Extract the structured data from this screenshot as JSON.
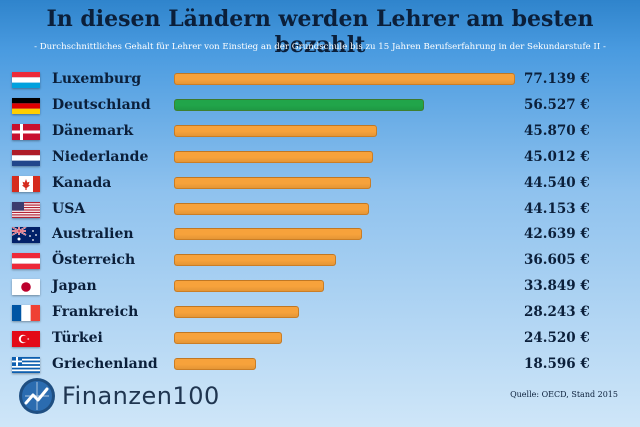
{
  "chart_data": {
    "type": "bar",
    "orientation": "horizontal",
    "title": "In diesen Ländern werden Lehrer am besten bezahlt",
    "subtitle": "- Durchschnittliches Gehalt für Lehrer von Einstieg an der Grundschule bis zu 15 Jahren Berufserfahrung in der Sekundarstufe II -",
    "categories": [
      "Luxemburg",
      "Deutschland",
      "Dänemark",
      "Niederlande",
      "Kanada",
      "USA",
      "Australien",
      "Österreich",
      "Japan",
      "Frankreich",
      "Türkei",
      "Griechenland"
    ],
    "values": [
      77139,
      56527,
      45870,
      45012,
      44540,
      44153,
      42639,
      36605,
      33849,
      28243,
      24520,
      18596
    ],
    "value_labels": [
      "77.139 €",
      "56.527 €",
      "45.870 €",
      "45.012 €",
      "44.540 €",
      "44.153 €",
      "42.639 €",
      "36.605 €",
      "33.849 €",
      "28.243 €",
      "24.520 €",
      "18.596 €"
    ],
    "flags": [
      "flag-luxembourg-icon",
      "flag-germany-icon",
      "flag-denmark-icon",
      "flag-netherlands-icon",
      "flag-canada-icon",
      "flag-usa-icon",
      "flag-australia-icon",
      "flag-austria-icon",
      "flag-japan-icon",
      "flag-france-icon",
      "flag-turkey-icon",
      "flag-greece-icon"
    ],
    "highlight_index": 1,
    "colors": {
      "bar": "#f7a23b",
      "highlight": "#21a54a"
    },
    "xlim": [
      0,
      77139
    ],
    "grid": false,
    "legend": "none"
  },
  "brand": {
    "name": "Finanzen100",
    "icon": "finanzen100-logo-icon"
  },
  "source": "Quelle: OECD, Stand 2015"
}
